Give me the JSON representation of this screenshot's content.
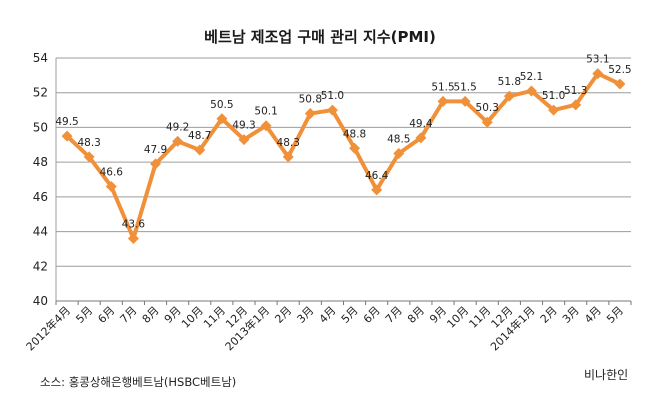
{
  "chart_data": {
    "type": "line",
    "title": "베트남 제조업 구매 관리 지수(PMI)",
    "categories": [
      "2012年4月",
      "5月",
      "6月",
      "7月",
      "8月",
      "9月",
      "10月",
      "11月",
      "12月",
      "2013年1月",
      "2月",
      "3月",
      "4月",
      "5月",
      "6月",
      "7月",
      "8月",
      "9月",
      "10月",
      "11月",
      "12月",
      "2014年1月",
      "2月",
      "3月",
      "4月",
      "5月"
    ],
    "values": [
      49.5,
      48.3,
      46.6,
      43.6,
      47.9,
      49.2,
      48.7,
      50.5,
      49.3,
      50.1,
      48.3,
      50.8,
      51.0,
      48.8,
      46.4,
      48.5,
      49.4,
      51.5,
      51.5,
      50.3,
      51.8,
      52.1,
      51.0,
      51.3,
      53.1,
      52.5
    ],
    "data_labels": [
      "49.5",
      "48.3",
      "46.6",
      "43.6",
      "47.9",
      "49.2",
      "48.7",
      "50.5",
      "49.3",
      "50.1",
      "48.3",
      "50.8",
      "51.0",
      "48.8",
      "46.4",
      "48.5",
      "49.4",
      "51.5",
      "51.5",
      "50.3",
      "51.8",
      "52.1",
      "51.0",
      "51.3",
      "53.1",
      "52.5"
    ],
    "ylim": [
      40,
      54
    ],
    "yticks": [
      "40",
      "42",
      "44",
      "46",
      "48",
      "50",
      "52",
      "54"
    ],
    "xlabel": "",
    "ylabel": "",
    "grid": true,
    "line_color": "#f0913a",
    "grid_color": "#9c9c9c"
  },
  "source": "소스: 홍콩상해은행베트남(HSBC베트남)",
  "brand": "비나한인"
}
